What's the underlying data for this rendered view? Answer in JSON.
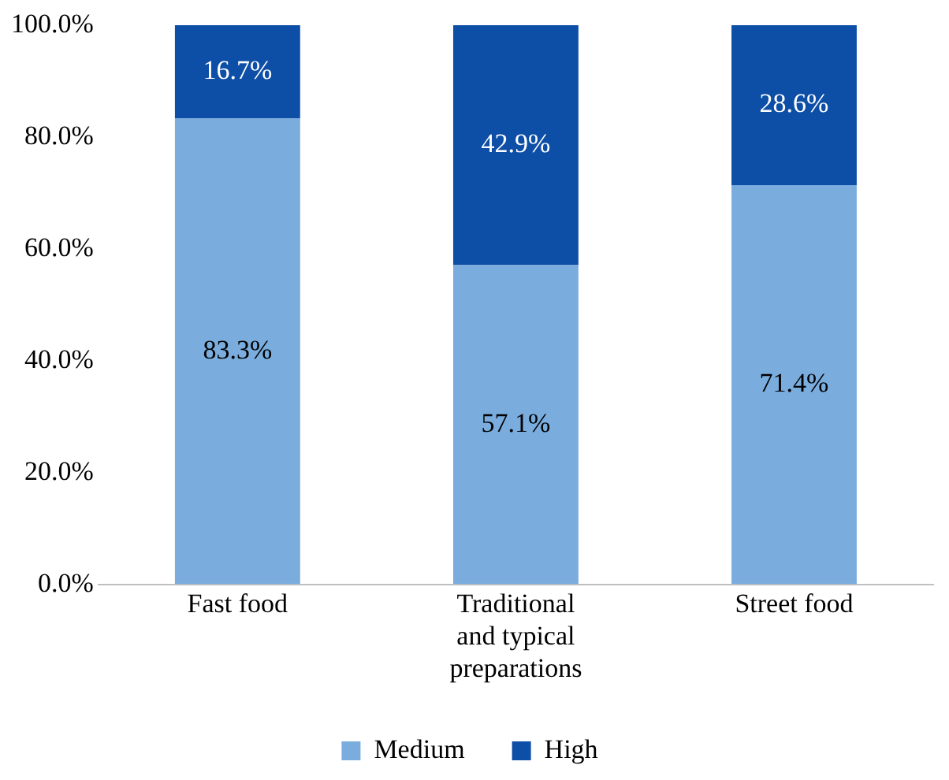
{
  "chart_data": {
    "type": "bar",
    "stacked": true,
    "categories": [
      "Fast food",
      "Traditional and typical preparations",
      "Street food"
    ],
    "series": [
      {
        "name": "Medium",
        "color": "#7aaddd",
        "values": [
          83.3,
          57.1,
          71.4
        ],
        "value_labels": [
          "83.3%",
          "57.1%",
          "71.4%"
        ]
      },
      {
        "name": "High",
        "color": "#0d4ea6",
        "values": [
          16.7,
          42.9,
          28.6
        ],
        "value_labels": [
          "16.7%",
          "42.9%",
          "28.6%"
        ]
      }
    ],
    "ylim": [
      0,
      100
    ],
    "yticks": [
      {
        "value": 0,
        "label": "0.0%"
      },
      {
        "value": 20,
        "label": "20.0%"
      },
      {
        "value": 40,
        "label": "40.0%"
      },
      {
        "value": 60,
        "label": "60.0%"
      },
      {
        "value": 80,
        "label": "80.0%"
      },
      {
        "value": 100,
        "label": "100.0%"
      }
    ],
    "grid": false,
    "legend": "bottom"
  }
}
